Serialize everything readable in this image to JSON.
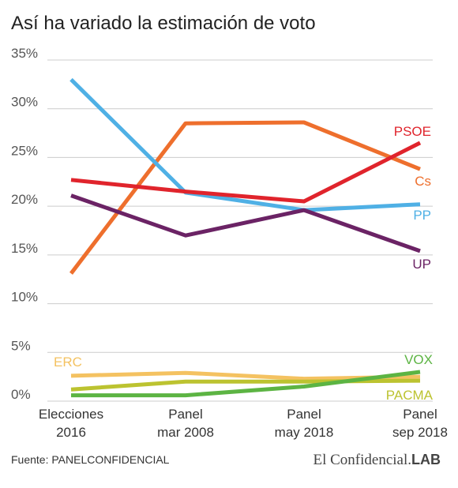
{
  "chart_data": {
    "type": "line",
    "title": "Así ha variado la estimación de voto",
    "categories": [
      [
        "Elecciones",
        "2016"
      ],
      [
        "Panel",
        "mar 2008"
      ],
      [
        "Panel",
        "may 2018"
      ],
      [
        "Panel",
        "sep 2018"
      ]
    ],
    "y_ticks": [
      "35%",
      "30%",
      "25%",
      "20%",
      "15%",
      "10%",
      "5%",
      "0%"
    ],
    "ylim": [
      0,
      35
    ],
    "grid": true,
    "series": [
      {
        "name": "PP",
        "color": "#4fb0e5",
        "values": [
          33.0,
          21.4,
          19.6,
          20.2
        ]
      },
      {
        "name": "Cs",
        "color": "#ee6f2d",
        "values": [
          13.1,
          28.5,
          28.6,
          23.8
        ]
      },
      {
        "name": "PSOE",
        "color": "#e0242c",
        "values": [
          22.7,
          21.5,
          20.5,
          26.5
        ]
      },
      {
        "name": "UP",
        "color": "#6b2365",
        "values": [
          21.1,
          17.0,
          19.6,
          15.4
        ]
      },
      {
        "name": "ERC",
        "color": "#f4c261",
        "values": [
          2.6,
          2.9,
          2.3,
          2.5
        ]
      },
      {
        "name": "PACMA",
        "color": "#bcc330",
        "values": [
          1.2,
          2.0,
          2.0,
          2.1
        ]
      },
      {
        "name": "VOX",
        "color": "#5cb443",
        "values": [
          0.6,
          0.6,
          1.5,
          3.0
        ]
      }
    ]
  },
  "footer": {
    "source": "Fuente: PANELCONFIDENCIAL",
    "brand_main": "El Confidencial.",
    "brand_suffix": "LAB"
  }
}
